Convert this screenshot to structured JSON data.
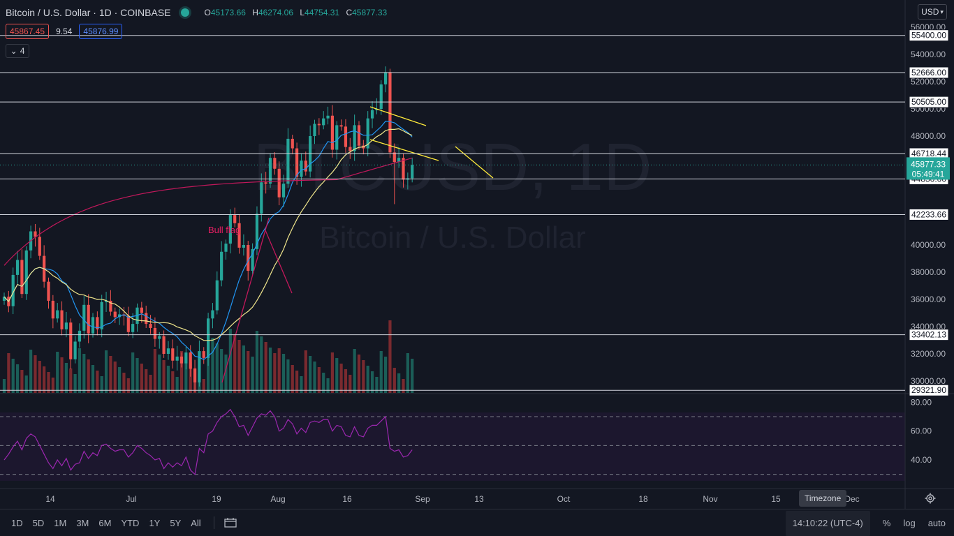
{
  "header": {
    "title": "Bitcoin / U.S. Dollar · 1D · COINBASE",
    "open_label": "O",
    "open": "45173.66",
    "high_label": "H",
    "high": "46274.06",
    "low_label": "L",
    "low": "44754.31",
    "close_label": "C",
    "close": "45877.33"
  },
  "quote": {
    "sell": "45867.45",
    "spread": "9.54",
    "buy": "45876.99"
  },
  "indicators_count": "4",
  "currency": "USD",
  "watermark": {
    "symbol": "BTCUSD, 1D",
    "name": "Bitcoin / U.S. Dollar"
  },
  "annotations": {
    "bull_flag": "Bull flag"
  },
  "price_axis": {
    "ticks": [
      "56000.00",
      "54000.00",
      "52000.00",
      "50000.00",
      "48000.00",
      "40000.00",
      "38000.00",
      "36000.00",
      "34000.00",
      "32000.00",
      "30000.00"
    ],
    "levels": [
      "55400.00",
      "52666.00",
      "50505.00",
      "46718.44",
      "44850.00",
      "42233.66",
      "33402.13",
      "29321.90"
    ],
    "current_price": "45877.33",
    "countdown": "05:49:41"
  },
  "rsi_axis": {
    "ticks": [
      "80.00",
      "60.00",
      "40.00"
    ]
  },
  "time_axis": {
    "labels": [
      "14",
      "Jul",
      "19",
      "Aug",
      "16",
      "Sep",
      "13",
      "Oct",
      "18",
      "Nov",
      "15",
      "Dec"
    ]
  },
  "timeframes": [
    "1D",
    "5D",
    "1M",
    "3M",
    "6M",
    "YTD",
    "1Y",
    "5Y",
    "All"
  ],
  "bottom": {
    "time": "14:10:22 (UTC-4)",
    "percent": "%",
    "log": "log",
    "auto": "auto",
    "tooltip": "Timezone"
  },
  "colors": {
    "up": "#26a69a",
    "down": "#ef5350",
    "ma200": "#c2185b",
    "ma_fast": "#2196f3",
    "ma_slow": "#f0e68c",
    "rsi": "#9c27b0",
    "trendline": "#ffeb3b",
    "background": "#131722"
  },
  "chart_data": {
    "type": "candlestick",
    "symbol": "Bitcoin / U.S. Dollar",
    "timeframe": "1D",
    "exchange": "COINBASE",
    "x_labels": [
      "14",
      "Jul",
      "19",
      "Aug",
      "16",
      "Sep",
      "13",
      "Oct",
      "18",
      "Nov",
      "15",
      "Dec"
    ],
    "y_range": [
      29000,
      57000
    ],
    "close_series": [
      36200,
      35500,
      37800,
      38900,
      36400,
      39600,
      41000,
      40600,
      39200,
      37300,
      35900,
      34600,
      35200,
      33800,
      34300,
      31600,
      32900,
      33700,
      35600,
      33500,
      34700,
      33800,
      35800,
      35900,
      35100,
      34700,
      34900,
      34800,
      33600,
      34200,
      35400,
      35000,
      34200,
      33900,
      33100,
      33300,
      32000,
      32400,
      31500,
      31800,
      31300,
      32100,
      30900,
      29900,
      32200,
      31700,
      34600,
      35200,
      37400,
      39500,
      40100,
      42200,
      41600,
      39800,
      40000,
      38100,
      39700,
      42300,
      44600,
      44500,
      46400,
      45600,
      43500,
      44500,
      47800,
      47100,
      45000,
      46200,
      45400,
      48000,
      48900,
      48800,
      49300,
      49500,
      47000,
      48800,
      48700,
      47200,
      46900,
      48800,
      47300,
      47100,
      49300,
      49900,
      50000,
      51800,
      52700,
      46800,
      46100,
      46400,
      44800,
      44900,
      45877
    ],
    "levels": [
      55400.0,
      52666.0,
      50505.0,
      46718.44,
      44850.0,
      42233.66,
      33402.13,
      29321.9
    ],
    "rsi_series": [
      40,
      44,
      49,
      53,
      47,
      55,
      58,
      56,
      50,
      44,
      38,
      34,
      40,
      36,
      41,
      33,
      37,
      38,
      46,
      41,
      45,
      43,
      50,
      51,
      48,
      46,
      47,
      47,
      42,
      45,
      50,
      48,
      45,
      43,
      40,
      41,
      34,
      38,
      35,
      38,
      36,
      42,
      33,
      30,
      48,
      45,
      58,
      60,
      66,
      70,
      72,
      75,
      70,
      63,
      64,
      57,
      63,
      69,
      72,
      71,
      74,
      70,
      60,
      62,
      68,
      65,
      58,
      62,
      59,
      66,
      67,
      66,
      68,
      68,
      60,
      64,
      63,
      57,
      56,
      63,
      57,
      56,
      62,
      64,
      64,
      67,
      70,
      48,
      46,
      47,
      42,
      43,
      47
    ],
    "rsi_range": [
      25,
      85
    ],
    "rsi_bands": [
      70,
      50,
      30
    ]
  }
}
